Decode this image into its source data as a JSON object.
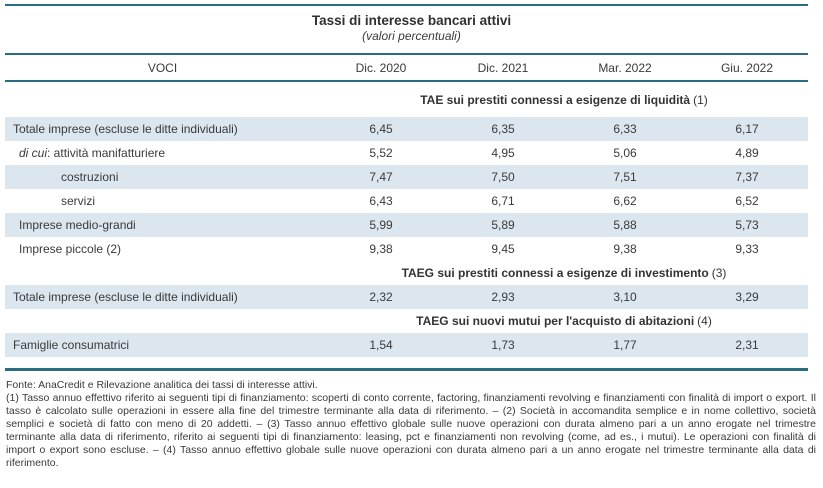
{
  "title": "Tassi di interesse bancari attivi",
  "subtitle": "(valori percentuali)",
  "colors": {
    "rule_teal": "#2a6d80",
    "row_shaded": "#dce6ef",
    "text": "#3a3a3a"
  },
  "header": {
    "voci": "VOCI",
    "columns": [
      "Dic. 2020",
      "Dic. 2021",
      "Mar. 2022",
      "Giu. 2022"
    ]
  },
  "table": {
    "rows": [
      {
        "type": "section",
        "label": "TAE sui prestiti connessi a esigenze di liquidità",
        "ref": "(1)"
      },
      {
        "type": "data",
        "label": "Totale imprese (escluse le ditte individuali)",
        "values": [
          "6,45",
          "6,35",
          "6,33",
          "6,17"
        ]
      },
      {
        "type": "data",
        "label_italic": "di cui",
        "label_rest": ": attività manifatturiere",
        "values": [
          "5,52",
          "4,95",
          "5,06",
          "4,89"
        ]
      },
      {
        "type": "data",
        "label": "costruzioni",
        "values": [
          "7,47",
          "7,50",
          "7,51",
          "7,37"
        ]
      },
      {
        "type": "data",
        "label": "servizi",
        "values": [
          "6,43",
          "6,71",
          "6,62",
          "6,52"
        ]
      },
      {
        "type": "data",
        "label": "Imprese medio-grandi",
        "values": [
          "5,99",
          "5,89",
          "5,88",
          "5,73"
        ]
      },
      {
        "type": "data",
        "label": "Imprese piccole (2)",
        "values": [
          "9,38",
          "9,45",
          "9,38",
          "9,33"
        ]
      },
      {
        "type": "section",
        "label": "TAEG sui prestiti connessi a esigenze di investimento",
        "ref": "(3)"
      },
      {
        "type": "data",
        "label": "Totale imprese (escluse le ditte individuali)",
        "values": [
          "2,32",
          "2,93",
          "3,10",
          "3,29"
        ]
      },
      {
        "type": "section",
        "label": "TAEG sui nuovi mutui per l'acquisto di abitazioni",
        "ref": "(4)"
      },
      {
        "type": "data",
        "label": "Famiglie consumatrici",
        "values": [
          "1,54",
          "1,73",
          "1,77",
          "2,31"
        ]
      }
    ]
  },
  "footnotes": {
    "fonte": "Fonte: AnaCredit e Rilevazione analitica dei tassi di interesse attivi.",
    "notes": "(1) Tasso annuo effettivo riferito ai seguenti tipi di finanziamento: scoperti di conto corrente, factoring, finanziamenti revolving e finanziamenti con finalità di import o export. Il tasso è calcolato sulle operazioni in essere alla fine del trimestre terminante alla data di riferimento. – (2) Società in accomandita semplice e in nome collettivo, società semplici e società di fatto con meno di 20 addetti. – (3) Tasso annuo effettivo globale sulle nuove operazioni con durata almeno pari a un anno erogate nel trimestre terminante alla data di riferimento, riferito ai seguenti tipi di finanziamento: leasing, pct e finanziamenti non revolving (come, ad es., i mutui). Le operazioni con finalità di import o export sono escluse. – (4) Tasso annuo effettivo globale sulle nuove operazioni con durata almeno pari a un anno erogate nel trimestre terminante alla data di riferimento."
  }
}
